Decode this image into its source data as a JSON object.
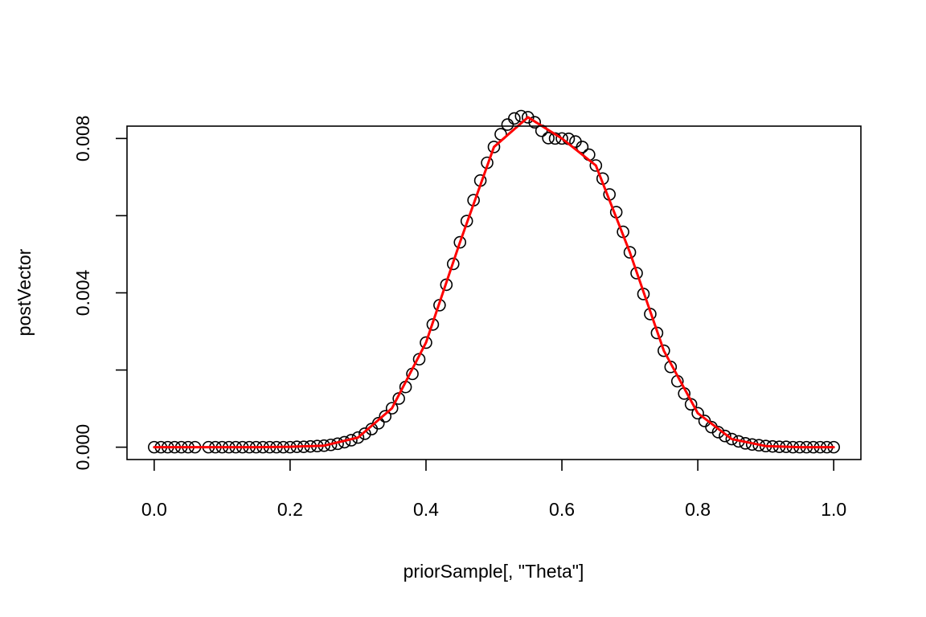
{
  "chart_data": {
    "type": "scatter",
    "title": "",
    "xlabel": "priorSample[, \"Theta\"]",
    "ylabel": "postVector",
    "xlim": [
      -0.04,
      1.04
    ],
    "ylim": [
      -0.00032,
      0.00832
    ],
    "x_ticks": [
      0.0,
      0.2,
      0.4,
      0.6,
      0.8,
      1.0
    ],
    "x_tick_labels": [
      "0.0",
      "0.2",
      "0.4",
      "0.6",
      "0.8",
      "1.0"
    ],
    "y_ticks": [
      0.0,
      0.002,
      0.004,
      0.006,
      0.008
    ],
    "y_tick_labels": [
      "0.000",
      "",
      "0.004",
      "",
      "0.008"
    ],
    "grid": false,
    "legend": "none",
    "series": [
      {
        "kind": "points",
        "marker": "open-circle",
        "color": "#000000",
        "x": [
          0.0,
          0.01,
          0.02,
          0.03,
          0.04,
          0.05,
          0.06,
          0.08,
          0.09,
          0.1,
          0.11,
          0.12,
          0.13,
          0.14,
          0.15,
          0.16,
          0.17,
          0.18,
          0.19,
          0.2,
          0.21,
          0.22,
          0.23,
          0.24,
          0.25,
          0.26,
          0.27,
          0.28,
          0.29,
          0.3,
          0.31,
          0.32,
          0.33,
          0.34,
          0.35,
          0.36,
          0.37,
          0.38,
          0.39,
          0.4,
          0.41,
          0.42,
          0.43,
          0.44,
          0.45,
          0.46,
          0.47,
          0.48,
          0.49,
          0.5,
          0.51,
          0.52,
          0.53,
          0.54,
          0.55,
          0.56,
          0.57,
          0.58,
          0.59,
          0.6,
          0.61,
          0.62,
          0.63,
          0.64,
          0.65,
          0.66,
          0.67,
          0.68,
          0.69,
          0.7,
          0.71,
          0.72,
          0.73,
          0.74,
          0.75,
          0.76,
          0.77,
          0.78,
          0.79,
          0.8,
          0.81,
          0.82,
          0.83,
          0.84,
          0.85,
          0.86,
          0.87,
          0.88,
          0.89,
          0.9,
          0.91,
          0.92,
          0.93,
          0.94,
          0.95,
          0.96,
          0.97,
          0.98,
          0.99,
          1.0
        ],
        "y": [
          0.0,
          0.0,
          0.0,
          0.0,
          0.0,
          0.0,
          0.0,
          0.0,
          0.0,
          0.0,
          0.0,
          0.0,
          0.0,
          0.0,
          0.0,
          0.0,
          0.0,
          0.0,
          0.0,
          0.0,
          1e-05,
          1e-05,
          2e-05,
          3e-05,
          4e-05,
          6e-05,
          9e-05,
          0.00013,
          0.00018,
          0.00025,
          0.00035,
          0.00047,
          0.00062,
          0.0008,
          0.00101,
          0.00126,
          0.00156,
          0.0019,
          0.00228,
          0.00271,
          0.00318,
          0.00368,
          0.00421,
          0.00475,
          0.00531,
          0.00586,
          0.0064,
          0.00691,
          0.00737,
          0.00778,
          0.00811,
          0.00836,
          0.00852,
          0.00858,
          0.00855,
          0.00842,
          0.0082,
          0.00801,
          0.008,
          0.008,
          0.00799,
          0.00792,
          0.00778,
          0.00758,
          0.0073,
          0.00696,
          0.00655,
          0.00609,
          0.00558,
          0.00505,
          0.00451,
          0.00397,
          0.00345,
          0.00296,
          0.0025,
          0.00208,
          0.00171,
          0.00139,
          0.00111,
          0.00088,
          0.00068,
          0.00052,
          0.00039,
          0.00029,
          0.00021,
          0.00015,
          0.0001,
          7e-05,
          5e-05,
          3e-05,
          2e-05,
          1e-05,
          1e-05,
          0.0,
          0.0,
          0.0,
          0.0,
          0.0,
          0.0,
          0.0
        ]
      },
      {
        "kind": "line",
        "color": "#ff0000",
        "x": [
          0.0,
          0.05,
          0.1,
          0.15,
          0.2,
          0.25,
          0.3,
          0.35,
          0.4,
          0.45,
          0.5,
          0.55,
          0.6,
          0.65,
          0.7,
          0.75,
          0.8,
          0.85,
          0.9,
          0.95,
          1.0
        ],
        "y": [
          0.0,
          0.0,
          0.0,
          0.0,
          1e-05,
          4e-05,
          0.00025,
          0.00101,
          0.00271,
          0.00531,
          0.00778,
          0.00855,
          0.008,
          0.0073,
          0.00505,
          0.0025,
          0.00088,
          0.00021,
          3e-05,
          0.0,
          0.0
        ]
      }
    ]
  }
}
